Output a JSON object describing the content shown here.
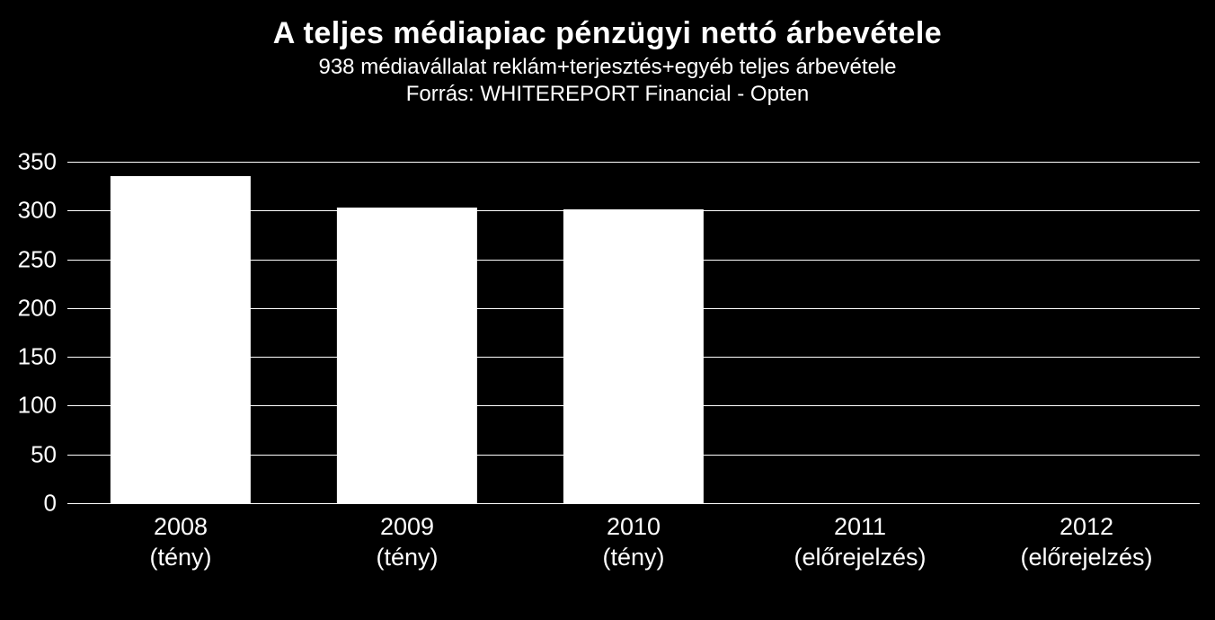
{
  "title": "A teljes médiapiac pénzügyi nettó árbevétele",
  "subtitle": "938 médiavállalat reklám+terjesztés+egyéb teljes árbevétele",
  "source": "Forrás: WHITEREPORT Financial - Opten",
  "chart": {
    "type": "bar",
    "background_color": "#000000",
    "text_color": "#ffffff",
    "bar_color": "#ffffff",
    "grid_color": "#ffffff",
    "title_fontsize": 34,
    "subtitle_fontsize": 24,
    "tick_fontsize": 26,
    "xlabel_fontsize": 27,
    "ylim": [
      0,
      350
    ],
    "ytick_step": 50,
    "yticks": [
      0,
      50,
      100,
      150,
      200,
      250,
      300,
      350
    ],
    "bar_width_ratio": 0.62,
    "categories": [
      "2008 (tény)",
      "2009 (tény)",
      "2010 (tény)",
      "2011 (előrejelzés)",
      "2012 (előrejelzés)"
    ],
    "values": [
      335,
      303,
      301,
      0,
      0
    ]
  }
}
